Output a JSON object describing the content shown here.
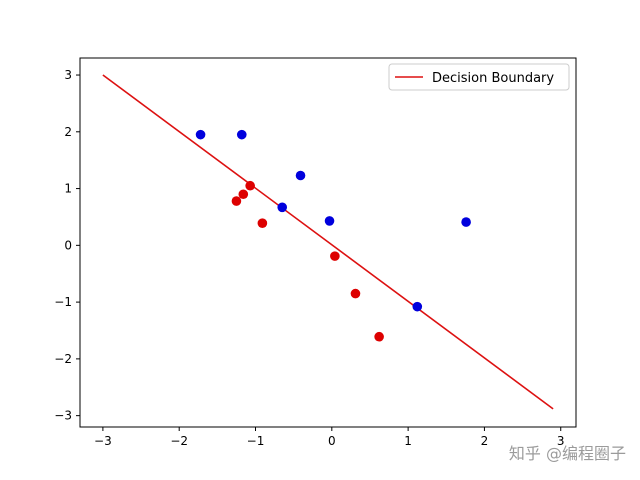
{
  "chart_data": {
    "type": "scatter",
    "title": "",
    "xlabel": "",
    "ylabel": "",
    "xlim": [
      -3.3,
      3.2
    ],
    "ylim": [
      -3.2,
      3.3
    ],
    "xticks": [
      -3,
      -2,
      -1,
      0,
      1,
      2,
      3
    ],
    "yticks": [
      -3,
      -2,
      -1,
      0,
      1,
      2,
      3
    ],
    "grid": false,
    "legend_position": "top-right",
    "series": [
      {
        "kind": "scatter",
        "color": "#0000dd",
        "points": [
          [
            -1.72,
            1.95
          ],
          [
            -1.18,
            1.95
          ],
          [
            -0.41,
            1.23
          ],
          [
            -0.65,
            0.67
          ],
          [
            -0.03,
            0.43
          ],
          [
            1.12,
            -1.08
          ],
          [
            1.76,
            0.41
          ]
        ]
      },
      {
        "kind": "scatter",
        "color": "#dd0000",
        "points": [
          [
            -1.07,
            1.05
          ],
          [
            -1.16,
            0.9
          ],
          [
            -1.25,
            0.78
          ],
          [
            -0.91,
            0.39
          ],
          [
            0.04,
            -0.19
          ],
          [
            0.31,
            -0.85
          ],
          [
            0.62,
            -1.61
          ]
        ]
      },
      {
        "kind": "line",
        "name": "Decision Boundary",
        "color": "#dd1111",
        "x": [
          -3.0,
          2.9
        ],
        "y": [
          3.0,
          -2.88
        ]
      }
    ]
  },
  "watermark": "知乎 @编程圈子"
}
